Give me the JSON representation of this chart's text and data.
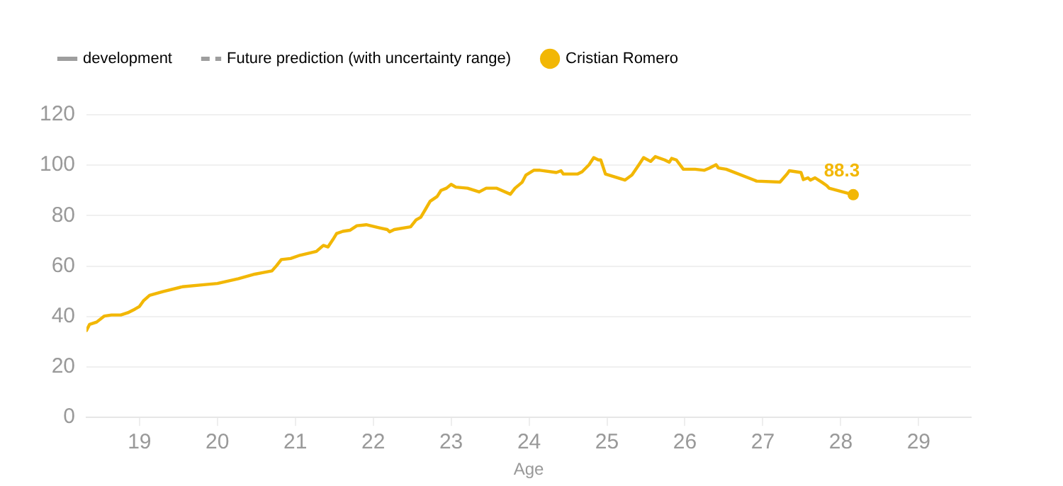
{
  "chart_data": {
    "type": "line",
    "xlabel": "Age",
    "legend": "top left",
    "grid": "y",
    "line_style": "solid",
    "xlim": [
      18.32,
      29.67
    ],
    "xticks": [
      19,
      20,
      21,
      22,
      23,
      24,
      25,
      26,
      27,
      28,
      29
    ],
    "ylim": [
      0,
      120
    ],
    "yticks": [
      0,
      20,
      40,
      60,
      80,
      100,
      120
    ],
    "series": [
      {
        "name": "development",
        "color": "#9e9e9e"
      },
      {
        "name": "Future prediction (with uncertainty range)",
        "color": "#9e9e9e",
        "line_style": "dashed"
      },
      {
        "name": "Cristian Romero",
        "color": "#f2b705",
        "x": [
          18.32,
          18.36,
          18.45,
          18.55,
          18.64,
          18.76,
          18.85,
          18.94,
          19.0,
          19.05,
          19.13,
          19.3,
          19.55,
          19.85,
          20.0,
          20.27,
          20.48,
          20.58,
          20.7,
          20.76,
          20.82,
          20.94,
          21.06,
          21.27,
          21.36,
          21.42,
          21.48,
          21.53,
          21.61,
          21.7,
          21.79,
          21.91,
          22.09,
          22.18,
          22.21,
          22.27,
          22.48,
          22.55,
          22.61,
          22.67,
          22.73,
          22.82,
          22.87,
          22.94,
          23.0,
          23.06,
          23.21,
          23.36,
          23.45,
          23.58,
          23.76,
          23.82,
          23.91,
          23.96,
          24.06,
          24.14,
          24.35,
          24.41,
          24.44,
          24.62,
          24.68,
          24.77,
          24.83,
          24.89,
          24.92,
          24.98,
          25.23,
          25.32,
          25.41,
          25.47,
          25.56,
          25.62,
          25.74,
          25.8,
          25.83,
          25.89,
          25.98,
          26.13,
          26.25,
          26.31,
          26.4,
          26.43,
          26.53,
          26.89,
          26.92,
          27.22,
          27.31,
          27.34,
          27.43,
          27.49,
          27.52,
          27.58,
          27.61,
          27.67,
          27.76,
          27.82,
          27.85,
          28.16
        ],
        "values": [
          34.5,
          36.9,
          37.8,
          40.2,
          40.6,
          40.6,
          41.5,
          42.9,
          44.0,
          46.2,
          48.4,
          49.9,
          51.8,
          52.7,
          53.1,
          55.0,
          56.8,
          57.4,
          58.1,
          60.2,
          62.6,
          63.0,
          64.3,
          65.8,
          68.2,
          67.6,
          70.4,
          72.9,
          73.8,
          74.2,
          76.0,
          76.4,
          75.1,
          74.5,
          73.6,
          74.5,
          75.6,
          78.3,
          79.4,
          82.5,
          85.7,
          87.6,
          90.0,
          90.9,
          92.4,
          91.3,
          90.9,
          89.4,
          90.9,
          90.9,
          88.5,
          90.9,
          93.2,
          96.1,
          98.0,
          98.0,
          97.1,
          97.8,
          96.5,
          96.5,
          97.4,
          100.2,
          103.0,
          102.1,
          102.1,
          96.5,
          94.1,
          96.1,
          100.2,
          103.0,
          101.5,
          103.4,
          102.1,
          101.2,
          102.7,
          102.1,
          98.4,
          98.4,
          98.0,
          98.8,
          100.2,
          98.9,
          98.4,
          94.1,
          93.7,
          93.3,
          96.5,
          97.8,
          97.4,
          97.1,
          94.3,
          95.0,
          94.1,
          95.0,
          93.2,
          91.9,
          90.9,
          88.3
        ],
        "value_labels": [
          null,
          null,
          null,
          null,
          null,
          null,
          null,
          null,
          null,
          null,
          null,
          null,
          null,
          null,
          null,
          null,
          null,
          null,
          null,
          null,
          null,
          null,
          null,
          null,
          null,
          null,
          null,
          null,
          null,
          null,
          null,
          null,
          null,
          null,
          null,
          null,
          null,
          null,
          null,
          null,
          null,
          null,
          null,
          null,
          null,
          null,
          null,
          null,
          null,
          null,
          null,
          null,
          null,
          null,
          null,
          null,
          null,
          null,
          null,
          null,
          null,
          null,
          null,
          null,
          null,
          null,
          null,
          null,
          null,
          null,
          null,
          null,
          null,
          null,
          null,
          null,
          null,
          null,
          null,
          null,
          null,
          null,
          null,
          null,
          null,
          null,
          null,
          null,
          null,
          null,
          null,
          null,
          null,
          null,
          null,
          null,
          null,
          "88.3"
        ]
      }
    ]
  }
}
